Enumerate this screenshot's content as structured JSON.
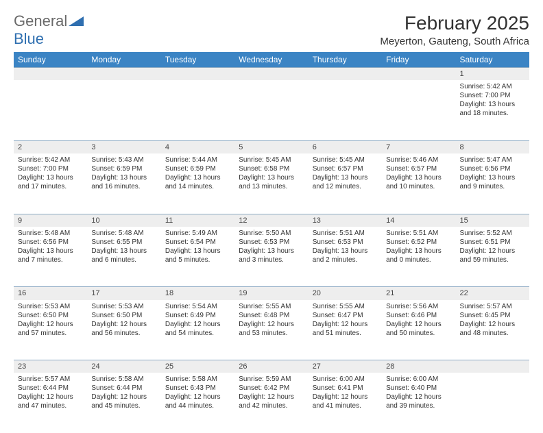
{
  "brand": {
    "general": "General",
    "blue": "Blue",
    "icon_color": "#2f6fb0"
  },
  "title": "February 2025",
  "location": "Meyerton, Gauteng, South Africa",
  "header_bg": "#3b84c4",
  "days": [
    "Sunday",
    "Monday",
    "Tuesday",
    "Wednesday",
    "Thursday",
    "Friday",
    "Saturday"
  ],
  "weeks": [
    {
      "nums": [
        "",
        "",
        "",
        "",
        "",
        "",
        "1"
      ],
      "cells": [
        null,
        null,
        null,
        null,
        null,
        null,
        {
          "sr": "Sunrise: 5:42 AM",
          "ss": "Sunset: 7:00 PM",
          "d1": "Daylight: 13 hours",
          "d2": "and 18 minutes."
        }
      ]
    },
    {
      "nums": [
        "2",
        "3",
        "4",
        "5",
        "6",
        "7",
        "8"
      ],
      "cells": [
        {
          "sr": "Sunrise: 5:42 AM",
          "ss": "Sunset: 7:00 PM",
          "d1": "Daylight: 13 hours",
          "d2": "and 17 minutes."
        },
        {
          "sr": "Sunrise: 5:43 AM",
          "ss": "Sunset: 6:59 PM",
          "d1": "Daylight: 13 hours",
          "d2": "and 16 minutes."
        },
        {
          "sr": "Sunrise: 5:44 AM",
          "ss": "Sunset: 6:59 PM",
          "d1": "Daylight: 13 hours",
          "d2": "and 14 minutes."
        },
        {
          "sr": "Sunrise: 5:45 AM",
          "ss": "Sunset: 6:58 PM",
          "d1": "Daylight: 13 hours",
          "d2": "and 13 minutes."
        },
        {
          "sr": "Sunrise: 5:45 AM",
          "ss": "Sunset: 6:57 PM",
          "d1": "Daylight: 13 hours",
          "d2": "and 12 minutes."
        },
        {
          "sr": "Sunrise: 5:46 AM",
          "ss": "Sunset: 6:57 PM",
          "d1": "Daylight: 13 hours",
          "d2": "and 10 minutes."
        },
        {
          "sr": "Sunrise: 5:47 AM",
          "ss": "Sunset: 6:56 PM",
          "d1": "Daylight: 13 hours",
          "d2": "and 9 minutes."
        }
      ]
    },
    {
      "nums": [
        "9",
        "10",
        "11",
        "12",
        "13",
        "14",
        "15"
      ],
      "cells": [
        {
          "sr": "Sunrise: 5:48 AM",
          "ss": "Sunset: 6:56 PM",
          "d1": "Daylight: 13 hours",
          "d2": "and 7 minutes."
        },
        {
          "sr": "Sunrise: 5:48 AM",
          "ss": "Sunset: 6:55 PM",
          "d1": "Daylight: 13 hours",
          "d2": "and 6 minutes."
        },
        {
          "sr": "Sunrise: 5:49 AM",
          "ss": "Sunset: 6:54 PM",
          "d1": "Daylight: 13 hours",
          "d2": "and 5 minutes."
        },
        {
          "sr": "Sunrise: 5:50 AM",
          "ss": "Sunset: 6:53 PM",
          "d1": "Daylight: 13 hours",
          "d2": "and 3 minutes."
        },
        {
          "sr": "Sunrise: 5:51 AM",
          "ss": "Sunset: 6:53 PM",
          "d1": "Daylight: 13 hours",
          "d2": "and 2 minutes."
        },
        {
          "sr": "Sunrise: 5:51 AM",
          "ss": "Sunset: 6:52 PM",
          "d1": "Daylight: 13 hours",
          "d2": "and 0 minutes."
        },
        {
          "sr": "Sunrise: 5:52 AM",
          "ss": "Sunset: 6:51 PM",
          "d1": "Daylight: 12 hours",
          "d2": "and 59 minutes."
        }
      ]
    },
    {
      "nums": [
        "16",
        "17",
        "18",
        "19",
        "20",
        "21",
        "22"
      ],
      "cells": [
        {
          "sr": "Sunrise: 5:53 AM",
          "ss": "Sunset: 6:50 PM",
          "d1": "Daylight: 12 hours",
          "d2": "and 57 minutes."
        },
        {
          "sr": "Sunrise: 5:53 AM",
          "ss": "Sunset: 6:50 PM",
          "d1": "Daylight: 12 hours",
          "d2": "and 56 minutes."
        },
        {
          "sr": "Sunrise: 5:54 AM",
          "ss": "Sunset: 6:49 PM",
          "d1": "Daylight: 12 hours",
          "d2": "and 54 minutes."
        },
        {
          "sr": "Sunrise: 5:55 AM",
          "ss": "Sunset: 6:48 PM",
          "d1": "Daylight: 12 hours",
          "d2": "and 53 minutes."
        },
        {
          "sr": "Sunrise: 5:55 AM",
          "ss": "Sunset: 6:47 PM",
          "d1": "Daylight: 12 hours",
          "d2": "and 51 minutes."
        },
        {
          "sr": "Sunrise: 5:56 AM",
          "ss": "Sunset: 6:46 PM",
          "d1": "Daylight: 12 hours",
          "d2": "and 50 minutes."
        },
        {
          "sr": "Sunrise: 5:57 AM",
          "ss": "Sunset: 6:45 PM",
          "d1": "Daylight: 12 hours",
          "d2": "and 48 minutes."
        }
      ]
    },
    {
      "nums": [
        "23",
        "24",
        "25",
        "26",
        "27",
        "28",
        ""
      ],
      "cells": [
        {
          "sr": "Sunrise: 5:57 AM",
          "ss": "Sunset: 6:44 PM",
          "d1": "Daylight: 12 hours",
          "d2": "and 47 minutes."
        },
        {
          "sr": "Sunrise: 5:58 AM",
          "ss": "Sunset: 6:44 PM",
          "d1": "Daylight: 12 hours",
          "d2": "and 45 minutes."
        },
        {
          "sr": "Sunrise: 5:58 AM",
          "ss": "Sunset: 6:43 PM",
          "d1": "Daylight: 12 hours",
          "d2": "and 44 minutes."
        },
        {
          "sr": "Sunrise: 5:59 AM",
          "ss": "Sunset: 6:42 PM",
          "d1": "Daylight: 12 hours",
          "d2": "and 42 minutes."
        },
        {
          "sr": "Sunrise: 6:00 AM",
          "ss": "Sunset: 6:41 PM",
          "d1": "Daylight: 12 hours",
          "d2": "and 41 minutes."
        },
        {
          "sr": "Sunrise: 6:00 AM",
          "ss": "Sunset: 6:40 PM",
          "d1": "Daylight: 12 hours",
          "d2": "and 39 minutes."
        },
        null
      ]
    }
  ]
}
